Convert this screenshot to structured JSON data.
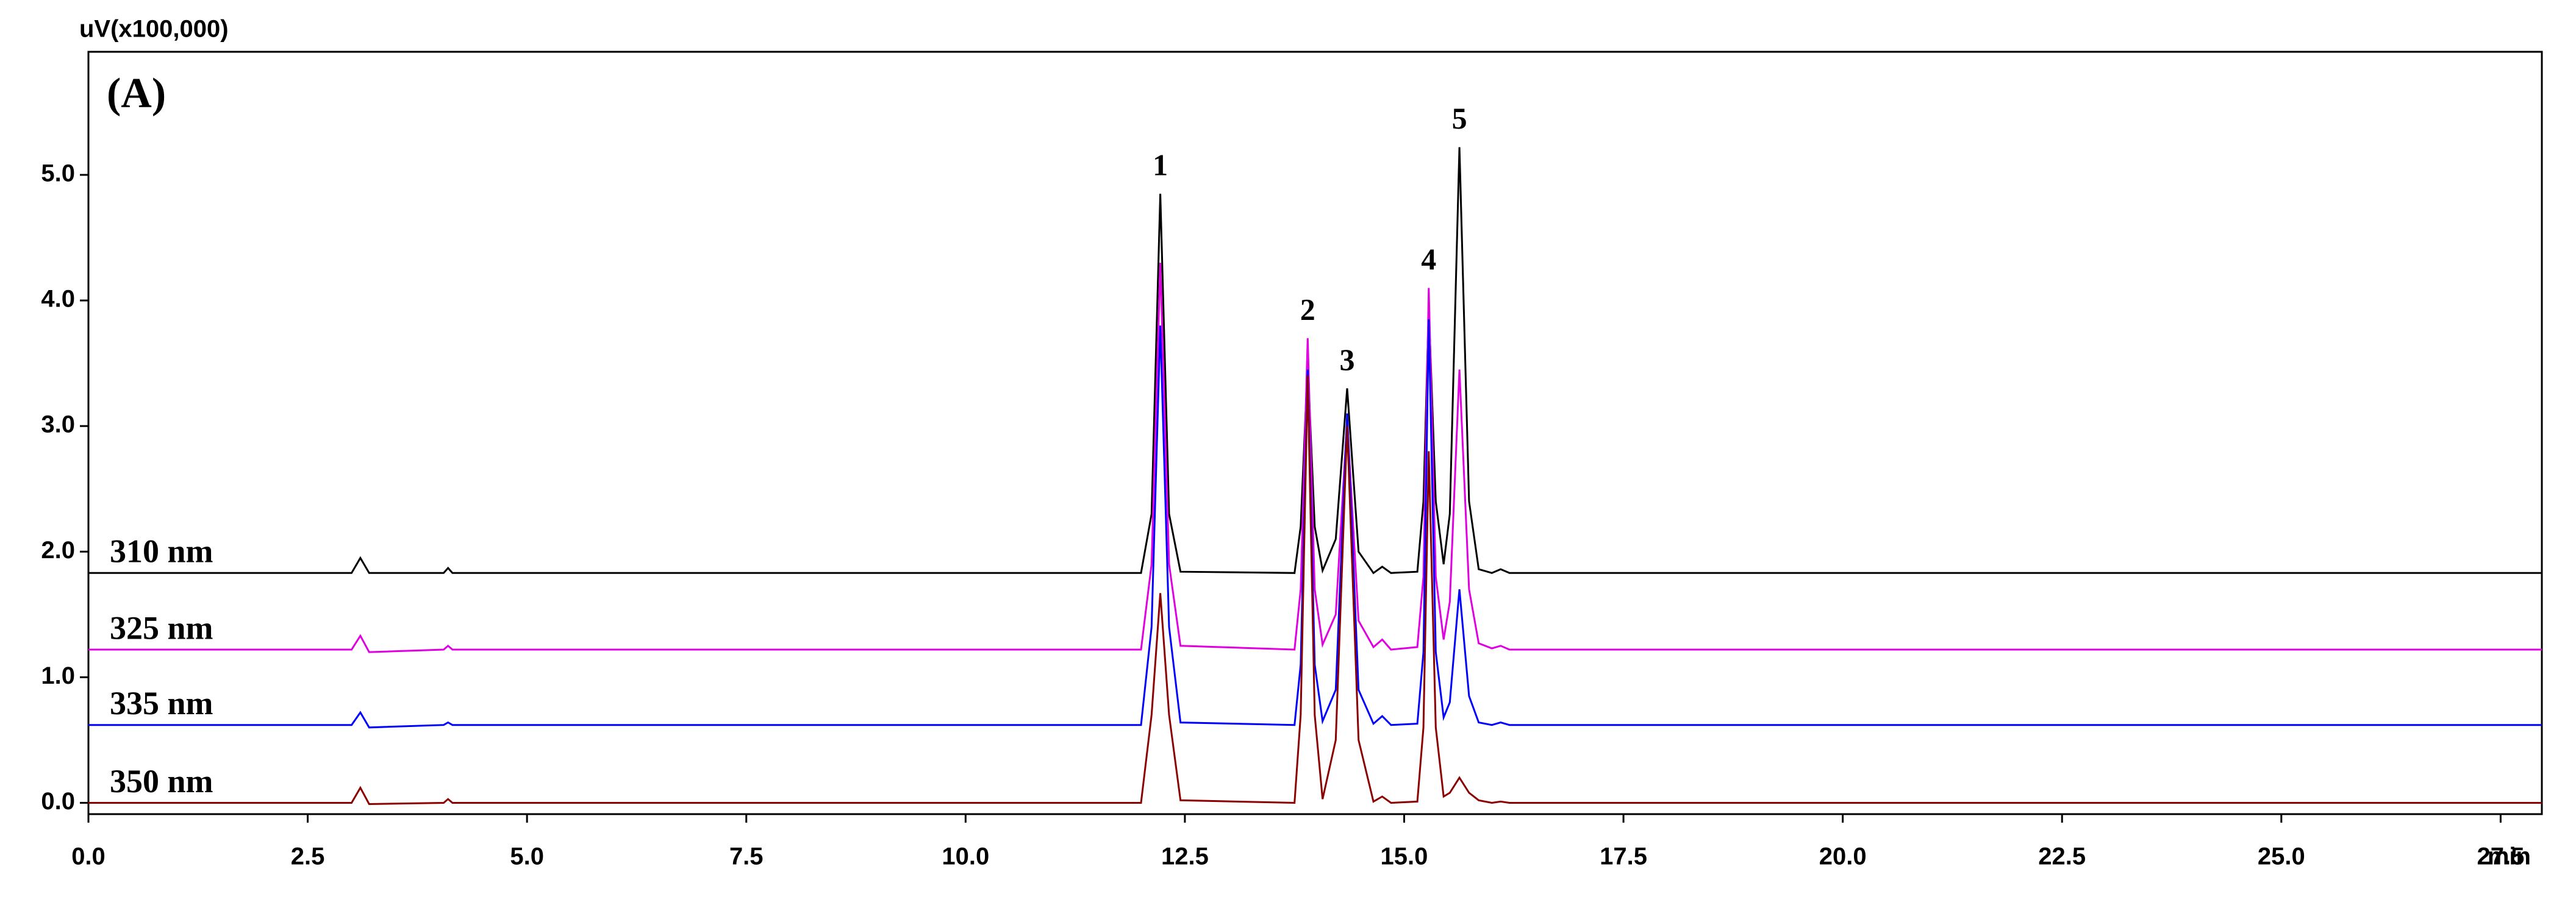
{
  "chart_data": {
    "type": "line",
    "ylabel": "uV(x100,000)",
    "xlabel": "min",
    "panel_label": "(A)",
    "x": [
      0,
      3.0,
      3.1,
      3.2,
      4.05,
      4.1,
      4.15,
      12.0,
      12.12,
      12.22,
      12.32,
      12.45,
      13.75,
      13.82,
      13.9,
      13.98,
      14.07,
      14.22,
      14.35,
      14.48,
      14.65,
      14.75,
      14.85,
      15.15,
      15.22,
      15.28,
      15.36,
      15.45,
      15.52,
      15.63,
      15.74,
      15.85,
      16.0,
      16.1,
      16.2,
      27.97
    ],
    "series": [
      {
        "name": "310 nm",
        "color": "#000000",
        "values": [
          1.83,
          1.83,
          1.95,
          1.83,
          1.83,
          1.87,
          1.83,
          1.83,
          2.3,
          4.85,
          2.3,
          1.84,
          1.83,
          2.2,
          3.5,
          2.2,
          1.85,
          2.1,
          3.3,
          2.0,
          1.83,
          1.88,
          1.83,
          1.84,
          2.4,
          3.95,
          2.4,
          1.9,
          2.3,
          5.22,
          2.4,
          1.86,
          1.83,
          1.86,
          1.83,
          1.83
        ]
      },
      {
        "name": "325 nm",
        "color": "#e000e0",
        "values": [
          1.22,
          1.22,
          1.33,
          1.2,
          1.22,
          1.25,
          1.22,
          1.22,
          1.9,
          4.3,
          1.9,
          1.25,
          1.22,
          1.7,
          3.7,
          1.7,
          1.26,
          1.5,
          3.05,
          1.45,
          1.24,
          1.3,
          1.22,
          1.24,
          1.8,
          4.1,
          1.8,
          1.3,
          1.6,
          3.45,
          1.7,
          1.27,
          1.23,
          1.25,
          1.22,
          1.22
        ]
      },
      {
        "name": "335 nm",
        "color": "#0000ff",
        "values": [
          0.62,
          0.62,
          0.72,
          0.6,
          0.62,
          0.64,
          0.62,
          0.62,
          1.4,
          3.8,
          1.4,
          0.64,
          0.62,
          1.1,
          3.45,
          1.1,
          0.65,
          0.9,
          3.1,
          0.9,
          0.63,
          0.69,
          0.62,
          0.63,
          1.2,
          3.85,
          1.2,
          0.68,
          0.8,
          1.7,
          0.85,
          0.64,
          0.62,
          0.64,
          0.62,
          0.62
        ]
      },
      {
        "name": "350 nm",
        "color": "#8b0000",
        "values": [
          0,
          0,
          0.12,
          -0.01,
          0,
          0.03,
          0,
          0,
          0.7,
          1.67,
          0.7,
          0.02,
          0,
          0.7,
          3.4,
          0.7,
          0.03,
          0.5,
          3.0,
          0.5,
          0.01,
          0.05,
          0,
          0.01,
          0.6,
          2.8,
          0.6,
          0.05,
          0.08,
          0.2,
          0.08,
          0.02,
          0,
          0.01,
          0,
          0
        ]
      }
    ],
    "peak_labels": [
      "1",
      "2",
      "3",
      "4",
      "5"
    ],
    "peak_x": [
      12.22,
      13.9,
      14.35,
      15.28,
      15.63
    ],
    "xlim": [
      0,
      27.97
    ],
    "ylim": [
      -0.09,
      5.98
    ],
    "xticks": [
      {
        "value": 0,
        "label": "0.0"
      },
      2.5,
      {
        "value": 5,
        "label": "5.0"
      },
      7.5,
      {
        "value": 10,
        "label": "10.0"
      },
      12.5,
      {
        "value": 15,
        "label": "15.0"
      },
      17.5,
      {
        "value": 20,
        "label": "20.0"
      },
      22.5,
      {
        "value": 25,
        "label": "25.0"
      },
      27.5
    ],
    "yticks": [
      {
        "value": 0,
        "label": "0.0"
      },
      {
        "value": 1,
        "label": "1.0"
      },
      {
        "value": 2,
        "label": "2.0"
      },
      {
        "value": 3,
        "label": "3.0"
      },
      {
        "value": 4,
        "label": "4.0"
      },
      {
        "value": 5,
        "label": "5.0"
      }
    ],
    "grid": false
  }
}
